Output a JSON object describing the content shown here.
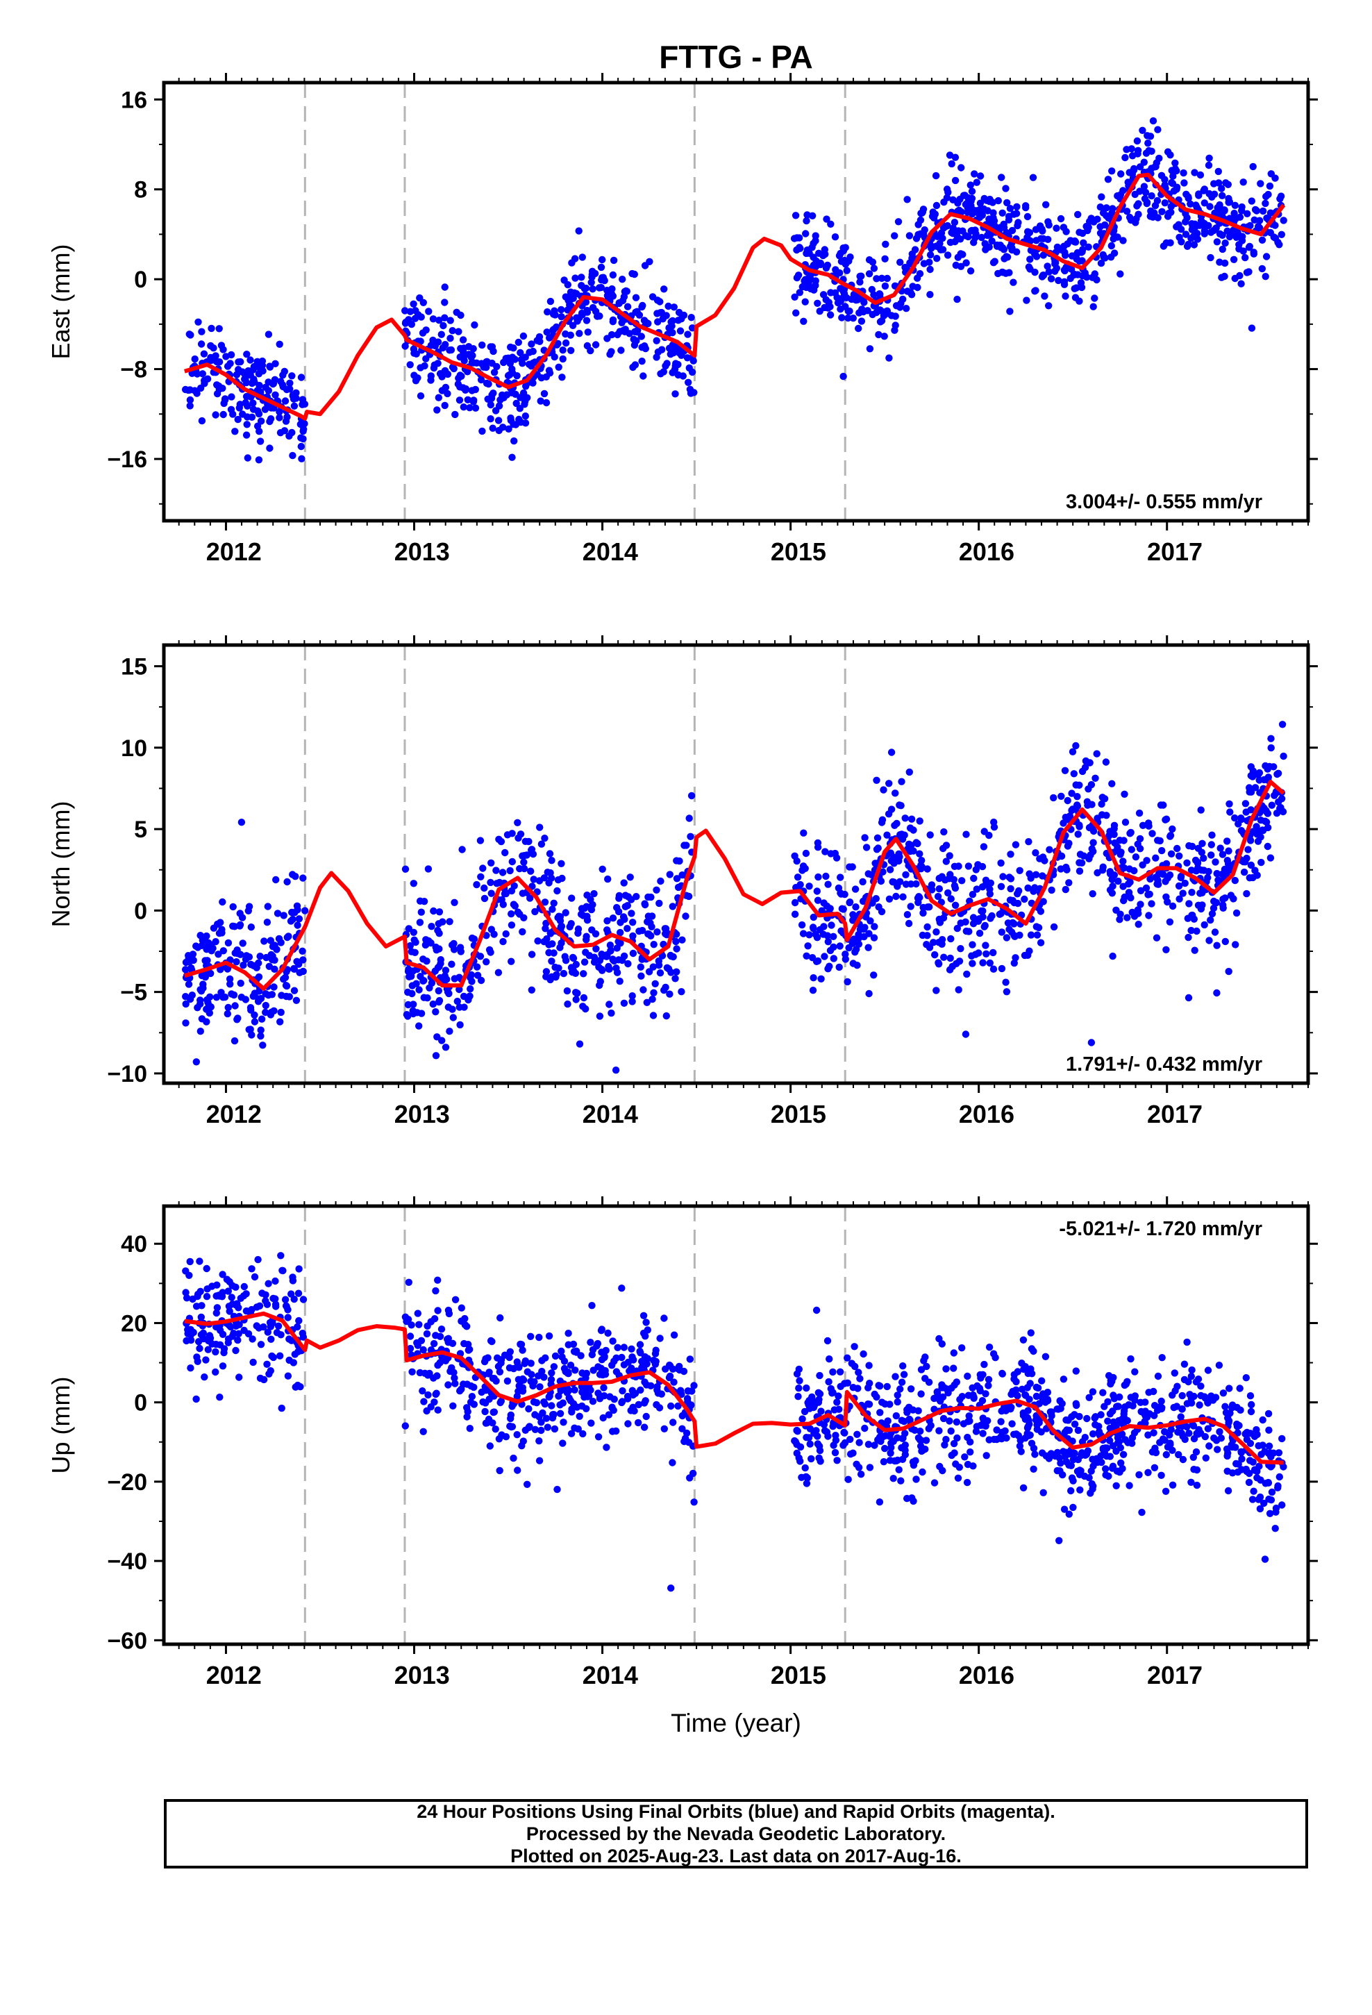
{
  "title": "FTTG - PA",
  "xlabel": "Time (year)",
  "colors": {
    "final_orbits": "#0000ff",
    "model": "#ff0000",
    "offset_lines": "#b4b4b4",
    "frame": "#000000"
  },
  "caption": {
    "line1": "24 Hour Positions Using Final Orbits (blue) and Rapid Orbits (magenta).",
    "line2": "Processed by the Nevada Geodetic Laboratory.",
    "line3": "Plotted on 2025-Aug-23. Last data on 2017-Aug-16."
  },
  "chart_data": [
    {
      "type": "scatter",
      "name": "east",
      "ylabel": "East (mm)",
      "xlim": [
        2011.67,
        2017.75
      ],
      "ylim": [
        -21.5,
        17.5
      ],
      "yticks": [
        16,
        8,
        0,
        -8,
        -16
      ],
      "xticks": [
        2012,
        2013,
        2014,
        2015,
        2016,
        2017
      ],
      "offset_epochs": [
        2012.42,
        2012.95,
        2014.49,
        2015.29
      ],
      "rate": "3.004+/- 0.555 mm/yr",
      "rate_position": "bottom-right",
      "data_segments": [
        [
          2011.78,
          2012.42
        ],
        [
          2012.95,
          2014.49
        ],
        [
          2015.02,
          2017.62
        ]
      ],
      "model": [
        [
          2011.78,
          -8.2
        ],
        [
          2011.9,
          -7.6
        ],
        [
          2012.0,
          -8.5
        ],
        [
          2012.1,
          -9.8
        ],
        [
          2012.2,
          -10.6
        ],
        [
          2012.3,
          -11.4
        ],
        [
          2012.4,
          -12.2
        ],
        [
          2012.42,
          -12.4
        ],
        [
          2012.43,
          -11.8
        ],
        [
          2012.5,
          -12.0
        ],
        [
          2012.6,
          -10.0
        ],
        [
          2012.7,
          -6.8
        ],
        [
          2012.8,
          -4.3
        ],
        [
          2012.88,
          -3.6
        ],
        [
          2012.95,
          -5.0
        ],
        [
          2012.96,
          -5.4
        ],
        [
          2013.1,
          -6.5
        ],
        [
          2013.2,
          -7.4
        ],
        [
          2013.3,
          -7.9
        ],
        [
          2013.4,
          -8.8
        ],
        [
          2013.5,
          -9.6
        ],
        [
          2013.6,
          -9.0
        ],
        [
          2013.7,
          -6.8
        ],
        [
          2013.8,
          -3.8
        ],
        [
          2013.9,
          -1.6
        ],
        [
          2014.0,
          -1.8
        ],
        [
          2014.1,
          -3.0
        ],
        [
          2014.2,
          -4.2
        ],
        [
          2014.3,
          -4.9
        ],
        [
          2014.4,
          -5.6
        ],
        [
          2014.49,
          -6.8
        ],
        [
          2014.5,
          -4.2
        ],
        [
          2014.6,
          -3.2
        ],
        [
          2014.7,
          -0.8
        ],
        [
          2014.8,
          2.8
        ],
        [
          2014.86,
          3.6
        ],
        [
          2014.95,
          3.0
        ],
        [
          2015.0,
          1.8
        ],
        [
          2015.1,
          0.8
        ],
        [
          2015.2,
          0.4
        ],
        [
          2015.29,
          -0.5
        ],
        [
          2015.35,
          -1.0
        ],
        [
          2015.45,
          -2.1
        ],
        [
          2015.55,
          -1.4
        ],
        [
          2015.65,
          1.0
        ],
        [
          2015.75,
          4.2
        ],
        [
          2015.85,
          5.8
        ],
        [
          2015.95,
          5.4
        ],
        [
          2016.05,
          4.6
        ],
        [
          2016.15,
          3.6
        ],
        [
          2016.25,
          3.1
        ],
        [
          2016.35,
          2.6
        ],
        [
          2016.45,
          1.6
        ],
        [
          2016.55,
          1.0
        ],
        [
          2016.65,
          2.8
        ],
        [
          2016.75,
          6.4
        ],
        [
          2016.85,
          9.2
        ],
        [
          2016.9,
          9.3
        ],
        [
          2017.0,
          7.4
        ],
        [
          2017.1,
          6.2
        ],
        [
          2017.2,
          5.8
        ],
        [
          2017.3,
          5.2
        ],
        [
          2017.4,
          4.5
        ],
        [
          2017.5,
          4.0
        ],
        [
          2017.62,
          6.6
        ]
      ],
      "noise_sd": 2.2,
      "points_count": 1500
    },
    {
      "type": "scatter",
      "name": "north",
      "ylabel": "North (mm)",
      "xlim": [
        2011.67,
        2017.75
      ],
      "ylim": [
        -10.6,
        16.3
      ],
      "yticks": [
        15,
        10,
        5,
        0,
        -5,
        -10
      ],
      "xticks": [
        2012,
        2013,
        2014,
        2015,
        2016,
        2017
      ],
      "offset_epochs": [
        2012.42,
        2012.95,
        2014.49,
        2015.29
      ],
      "rate": "1.791+/- 0.432 mm/yr",
      "rate_position": "bottom-right",
      "data_segments": [
        [
          2011.78,
          2012.42
        ],
        [
          2012.95,
          2014.49
        ],
        [
          2015.02,
          2017.62
        ]
      ],
      "model": [
        [
          2011.78,
          -4.0
        ],
        [
          2011.9,
          -3.6
        ],
        [
          2012.0,
          -3.2
        ],
        [
          2012.1,
          -3.8
        ],
        [
          2012.2,
          -4.8
        ],
        [
          2012.3,
          -3.6
        ],
        [
          2012.42,
          -1.0
        ],
        [
          2012.5,
          1.4
        ],
        [
          2012.56,
          2.3
        ],
        [
          2012.65,
          1.2
        ],
        [
          2012.75,
          -0.8
        ],
        [
          2012.85,
          -2.2
        ],
        [
          2012.95,
          -1.6
        ],
        [
          2012.96,
          -3.2
        ],
        [
          2013.05,
          -3.5
        ],
        [
          2013.15,
          -4.6
        ],
        [
          2013.25,
          -4.6
        ],
        [
          2013.35,
          -1.8
        ],
        [
          2013.45,
          1.3
        ],
        [
          2013.55,
          2.0
        ],
        [
          2013.65,
          0.8
        ],
        [
          2013.75,
          -1.2
        ],
        [
          2013.85,
          -2.2
        ],
        [
          2013.95,
          -2.1
        ],
        [
          2014.05,
          -1.5
        ],
        [
          2014.15,
          -1.9
        ],
        [
          2014.25,
          -3.0
        ],
        [
          2014.35,
          -2.2
        ],
        [
          2014.45,
          2.0
        ],
        [
          2014.49,
          3.3
        ],
        [
          2014.5,
          4.5
        ],
        [
          2014.55,
          4.9
        ],
        [
          2014.65,
          3.2
        ],
        [
          2014.75,
          1.0
        ],
        [
          2014.85,
          0.4
        ],
        [
          2014.95,
          1.1
        ],
        [
          2015.05,
          1.2
        ],
        [
          2015.15,
          -0.3
        ],
        [
          2015.25,
          -0.2
        ],
        [
          2015.29,
          -0.8
        ],
        [
          2015.3,
          -1.8
        ],
        [
          2015.4,
          0.2
        ],
        [
          2015.5,
          3.6
        ],
        [
          2015.56,
          4.4
        ],
        [
          2015.65,
          2.8
        ],
        [
          2015.75,
          0.6
        ],
        [
          2015.85,
          -0.2
        ],
        [
          2015.95,
          0.3
        ],
        [
          2016.05,
          0.7
        ],
        [
          2016.15,
          0.1
        ],
        [
          2016.25,
          -0.8
        ],
        [
          2016.35,
          1.4
        ],
        [
          2016.45,
          4.8
        ],
        [
          2016.55,
          6.2
        ],
        [
          2016.65,
          4.9
        ],
        [
          2016.75,
          2.3
        ],
        [
          2016.85,
          1.9
        ],
        [
          2016.95,
          2.6
        ],
        [
          2017.05,
          2.6
        ],
        [
          2017.15,
          2.0
        ],
        [
          2017.25,
          1.1
        ],
        [
          2017.35,
          2.2
        ],
        [
          2017.45,
          5.6
        ],
        [
          2017.55,
          7.9
        ],
        [
          2017.62,
          7.2
        ]
      ],
      "noise_sd": 2.1,
      "points_count": 1500
    },
    {
      "type": "scatter",
      "name": "up",
      "ylabel": "Up (mm)",
      "xlim": [
        2011.67,
        2017.75
      ],
      "ylim": [
        -61,
        49.5
      ],
      "yticks": [
        40,
        20,
        0,
        -20,
        -40,
        -60
      ],
      "xticks": [
        2012,
        2013,
        2014,
        2015,
        2016,
        2017
      ],
      "offset_epochs": [
        2012.42,
        2012.95,
        2014.49,
        2015.29
      ],
      "rate": "-5.021+/- 1.720 mm/yr",
      "rate_position": "top-right",
      "data_segments": [
        [
          2011.78,
          2012.42
        ],
        [
          2012.95,
          2014.49
        ],
        [
          2015.02,
          2017.62
        ]
      ],
      "model": [
        [
          2011.78,
          20.5
        ],
        [
          2011.9,
          19.8
        ],
        [
          2012.0,
          20.4
        ],
        [
          2012.1,
          21.4
        ],
        [
          2012.2,
          22.4
        ],
        [
          2012.3,
          20.6
        ],
        [
          2012.42,
          13.2
        ],
        [
          2012.43,
          15.6
        ],
        [
          2012.5,
          13.8
        ],
        [
          2012.6,
          15.6
        ],
        [
          2012.7,
          18.2
        ],
        [
          2012.8,
          19.2
        ],
        [
          2012.9,
          18.8
        ],
        [
          2012.95,
          18.4
        ],
        [
          2012.96,
          10.6
        ],
        [
          2013.05,
          11.8
        ],
        [
          2013.15,
          12.6
        ],
        [
          2013.25,
          11.2
        ],
        [
          2013.35,
          6.6
        ],
        [
          2013.45,
          1.8
        ],
        [
          2013.55,
          0.2
        ],
        [
          2013.65,
          1.8
        ],
        [
          2013.75,
          4.0
        ],
        [
          2013.85,
          4.9
        ],
        [
          2013.95,
          4.9
        ],
        [
          2014.05,
          5.2
        ],
        [
          2014.15,
          6.8
        ],
        [
          2014.25,
          7.6
        ],
        [
          2014.35,
          4.4
        ],
        [
          2014.45,
          -1.8
        ],
        [
          2014.49,
          -4.8
        ],
        [
          2014.5,
          -11.2
        ],
        [
          2014.6,
          -10.4
        ],
        [
          2014.7,
          -7.8
        ],
        [
          2014.8,
          -5.4
        ],
        [
          2014.9,
          -5.2
        ],
        [
          2015.0,
          -5.6
        ],
        [
          2015.1,
          -5.4
        ],
        [
          2015.2,
          -3.2
        ],
        [
          2015.29,
          -5.8
        ],
        [
          2015.3,
          2.6
        ],
        [
          2015.4,
          -3.4
        ],
        [
          2015.5,
          -7.0
        ],
        [
          2015.6,
          -6.6
        ],
        [
          2015.7,
          -4.4
        ],
        [
          2015.8,
          -2.2
        ],
        [
          2015.9,
          -1.4
        ],
        [
          2016.0,
          -1.6
        ],
        [
          2016.1,
          -0.4
        ],
        [
          2016.2,
          0.4
        ],
        [
          2016.3,
          -1.2
        ],
        [
          2016.4,
          -7.4
        ],
        [
          2016.5,
          -11.4
        ],
        [
          2016.6,
          -10.6
        ],
        [
          2016.7,
          -7.8
        ],
        [
          2016.8,
          -6.0
        ],
        [
          2016.9,
          -6.4
        ],
        [
          2017.0,
          -5.8
        ],
        [
          2017.1,
          -4.8
        ],
        [
          2017.2,
          -4.2
        ],
        [
          2017.3,
          -6.0
        ],
        [
          2017.4,
          -10.4
        ],
        [
          2017.5,
          -15.0
        ],
        [
          2017.62,
          -15.2
        ]
      ],
      "noise_sd": 7.5,
      "points_count": 1500
    }
  ]
}
